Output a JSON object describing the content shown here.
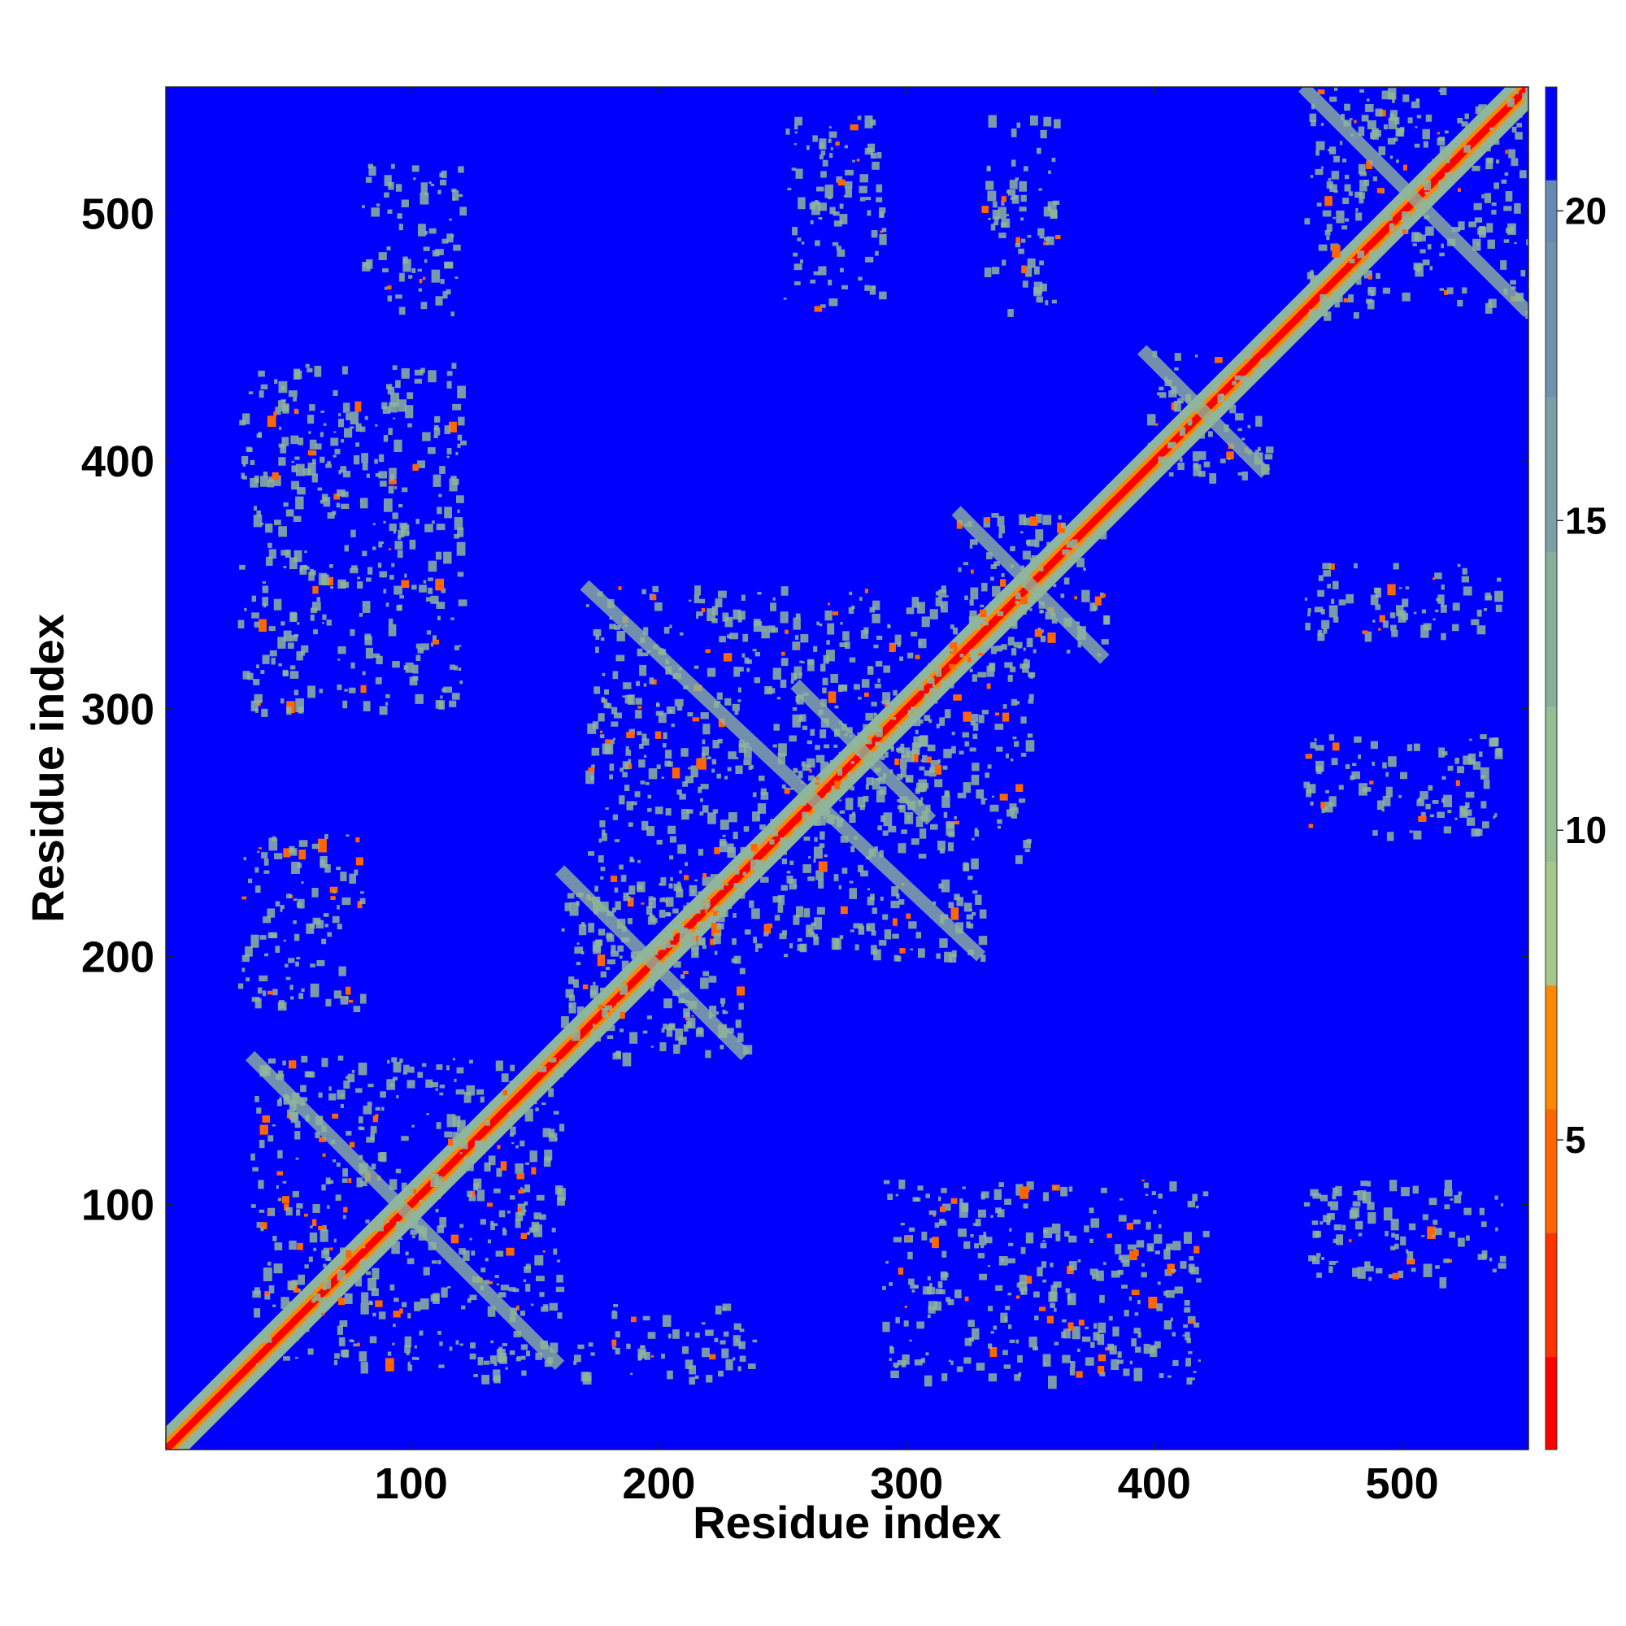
{
  "chart_data": {
    "type": "heatmap",
    "title": "",
    "xlabel": "Residue index",
    "ylabel": "Residue index",
    "xlim": [
      1,
      551
    ],
    "ylim": [
      1,
      551
    ],
    "x_ticks": [
      100,
      200,
      300,
      400,
      500
    ],
    "y_ticks": [
      100,
      200,
      300,
      400,
      500
    ],
    "colorbar": {
      "range": [
        0,
        22
      ],
      "ticks": [
        5,
        10,
        15,
        20
      ],
      "levels": [
        {
          "from": 0,
          "to": 1.5,
          "color": "#ff0000"
        },
        {
          "from": 1.5,
          "to": 3.5,
          "color": "#ff3300"
        },
        {
          "from": 3.5,
          "to": 5.5,
          "color": "#ff6600"
        },
        {
          "from": 5.5,
          "to": 7.5,
          "color": "#ff8800"
        },
        {
          "from": 7.5,
          "to": 9.5,
          "color": "#a6c98b"
        },
        {
          "from": 9.5,
          "to": 12,
          "color": "#97bd93"
        },
        {
          "from": 12,
          "to": 14.5,
          "color": "#89ad9a"
        },
        {
          "from": 14.5,
          "to": 17,
          "color": "#7c9fa6"
        },
        {
          "from": 17,
          "to": 19.5,
          "color": "#6f93ae"
        },
        {
          "from": 19.5,
          "to": 20.5,
          "color": "#6688b3"
        },
        {
          "from": 20.5,
          "to": 22,
          "color": "#0000ff"
        }
      ]
    },
    "background_color": "#0000ff",
    "contact_color": "#8fb59a",
    "contact_regions": [
      {
        "x": [
          1,
          551
        ],
        "y": [
          1,
          551
        ],
        "kind": "diagonal"
      },
      {
        "x": [
          35,
          160
        ],
        "y": [
          35,
          160
        ],
        "kind": "block"
      },
      {
        "x": [
          160,
          235
        ],
        "y": [
          160,
          235
        ],
        "kind": "block"
      },
      {
        "x": [
          255,
          310
        ],
        "y": [
          255,
          310
        ],
        "kind": "block"
      },
      {
        "x": [
          320,
          380
        ],
        "y": [
          320,
          380
        ],
        "kind": "block"
      },
      {
        "x": [
          395,
          445
        ],
        "y": [
          395,
          445
        ],
        "kind": "block"
      },
      {
        "x": [
          460,
          551
        ],
        "y": [
          460,
          551
        ],
        "kind": "block"
      },
      {
        "x": [
          80,
          120
        ],
        "y": [
          460,
          520
        ],
        "kind": "patch"
      },
      {
        "x": [
          30,
          120
        ],
        "y": [
          300,
          440
        ],
        "kind": "patch"
      },
      {
        "x": [
          30,
          80
        ],
        "y": [
          180,
          250
        ],
        "kind": "patch"
      },
      {
        "x": [
          125,
          175
        ],
        "y": [
          30,
          45
        ],
        "kind": "patch"
      },
      {
        "x": [
          180,
          240
        ],
        "y": [
          30,
          60
        ],
        "kind": "patch"
      },
      {
        "x": [
          290,
          420
        ],
        "y": [
          30,
          110
        ],
        "kind": "patch"
      },
      {
        "x": [
          460,
          540
        ],
        "y": [
          70,
          110
        ],
        "kind": "patch"
      },
      {
        "x": [
          460,
          540
        ],
        "y": [
          250,
          290
        ],
        "kind": "patch"
      },
      {
        "x": [
          460,
          540
        ],
        "y": [
          330,
          360
        ],
        "kind": "patch"
      },
      {
        "x": [
          250,
          290
        ],
        "y": [
          460,
          540
        ],
        "kind": "patch"
      },
      {
        "x": [
          330,
          360
        ],
        "y": [
          460,
          540
        ],
        "kind": "patch"
      },
      {
        "x": [
          330,
          350
        ],
        "y": [
          240,
          330
        ],
        "kind": "patch"
      },
      {
        "x": [
          170,
          330
        ],
        "y": [
          200,
          350
        ],
        "kind": "cross"
      }
    ]
  }
}
